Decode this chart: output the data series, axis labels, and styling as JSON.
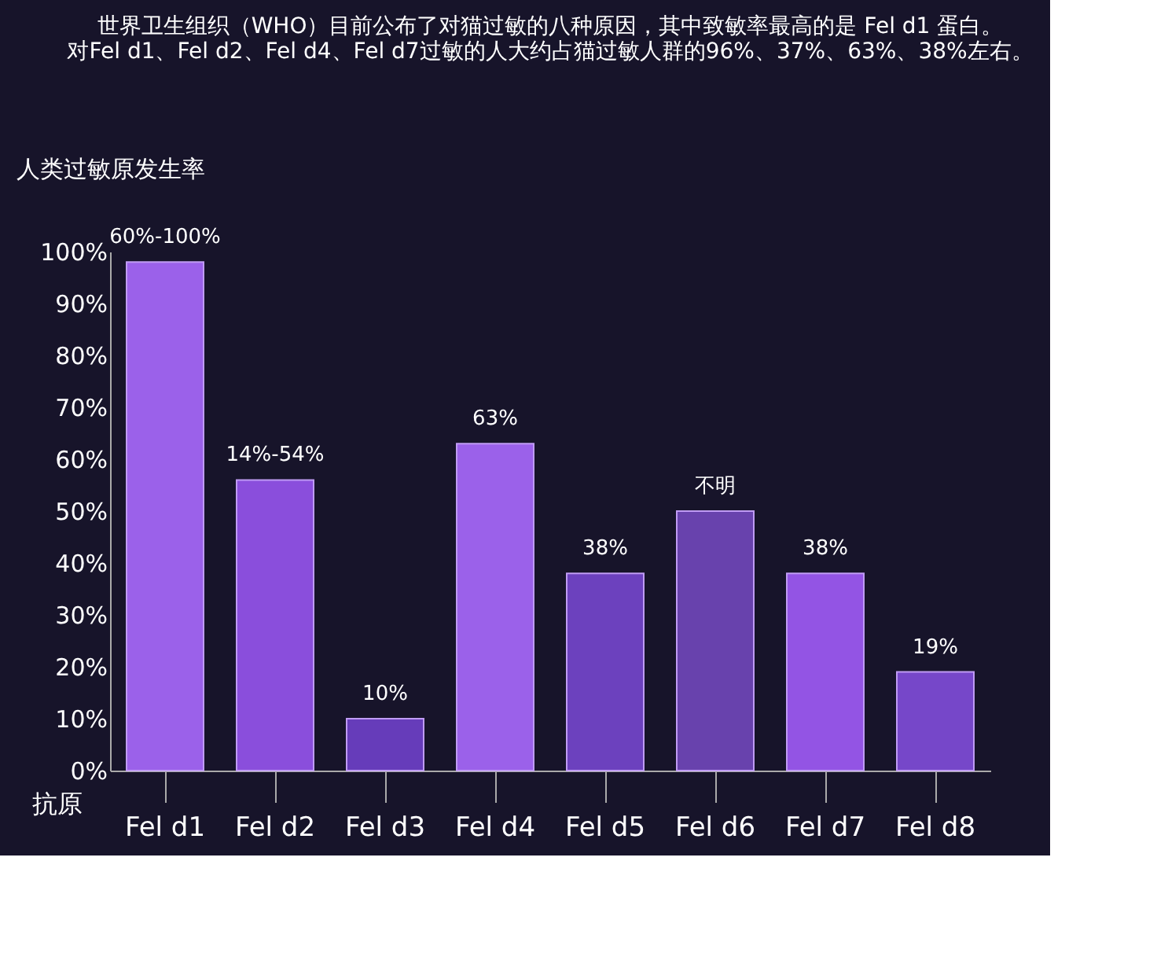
{
  "chart_data": {
    "type": "bar",
    "title": [
      "世界卫生组织（WHO）目前公布了对猫过敏的八种原因，其中致敏率最高的是 Fel d1 蛋白。",
      "对Fel d1、Fel d2、Fel d4、Fel d7过敏的人大约占猫过敏人群的96%、37%、63%、38%左右。"
    ],
    "ylabel": "人类过敏原发生率",
    "xlabel": "抗原",
    "annotations": [
      {
        "text": "60%-100%",
        "x": "Fel d1",
        "y": 98
      },
      {
        "text": "14%-54%",
        "x": "Fel d2",
        "y": 56
      }
    ],
    "categories": [
      "Fel d1",
      "Fel d2",
      "Fel d3",
      "Fel d4",
      "Fel d5",
      "Fel d6",
      "Fel d7",
      "Fel d8"
    ],
    "values": [
      98,
      56,
      10,
      63,
      38,
      50,
      38,
      19
    ],
    "value_labels": [
      null,
      null,
      "10%",
      "63%",
      "38%",
      "不明",
      "38%",
      "19%"
    ],
    "colors": [
      "#a366f5",
      "#9152e6",
      "#6b3fc2",
      "#a366f5",
      "#7144c6",
      "#6d45b5",
      "#9a58ee",
      "#7c4ad2"
    ],
    "ylim": [
      0,
      100
    ],
    "yticks": [
      {
        "value": 0,
        "label": "0%"
      },
      {
        "value": 10,
        "label": "10%"
      },
      {
        "value": 20,
        "label": "20%"
      },
      {
        "value": 30,
        "label": "30%"
      },
      {
        "value": 40,
        "label": "40%"
      },
      {
        "value": 50,
        "label": "50%"
      },
      {
        "value": 60,
        "label": "60%"
      },
      {
        "value": 70,
        "label": "70%"
      },
      {
        "value": 80,
        "label": "80%"
      },
      {
        "value": 90,
        "label": "90%"
      },
      {
        "value": 100,
        "label": "100%"
      }
    ],
    "grid": false
  }
}
